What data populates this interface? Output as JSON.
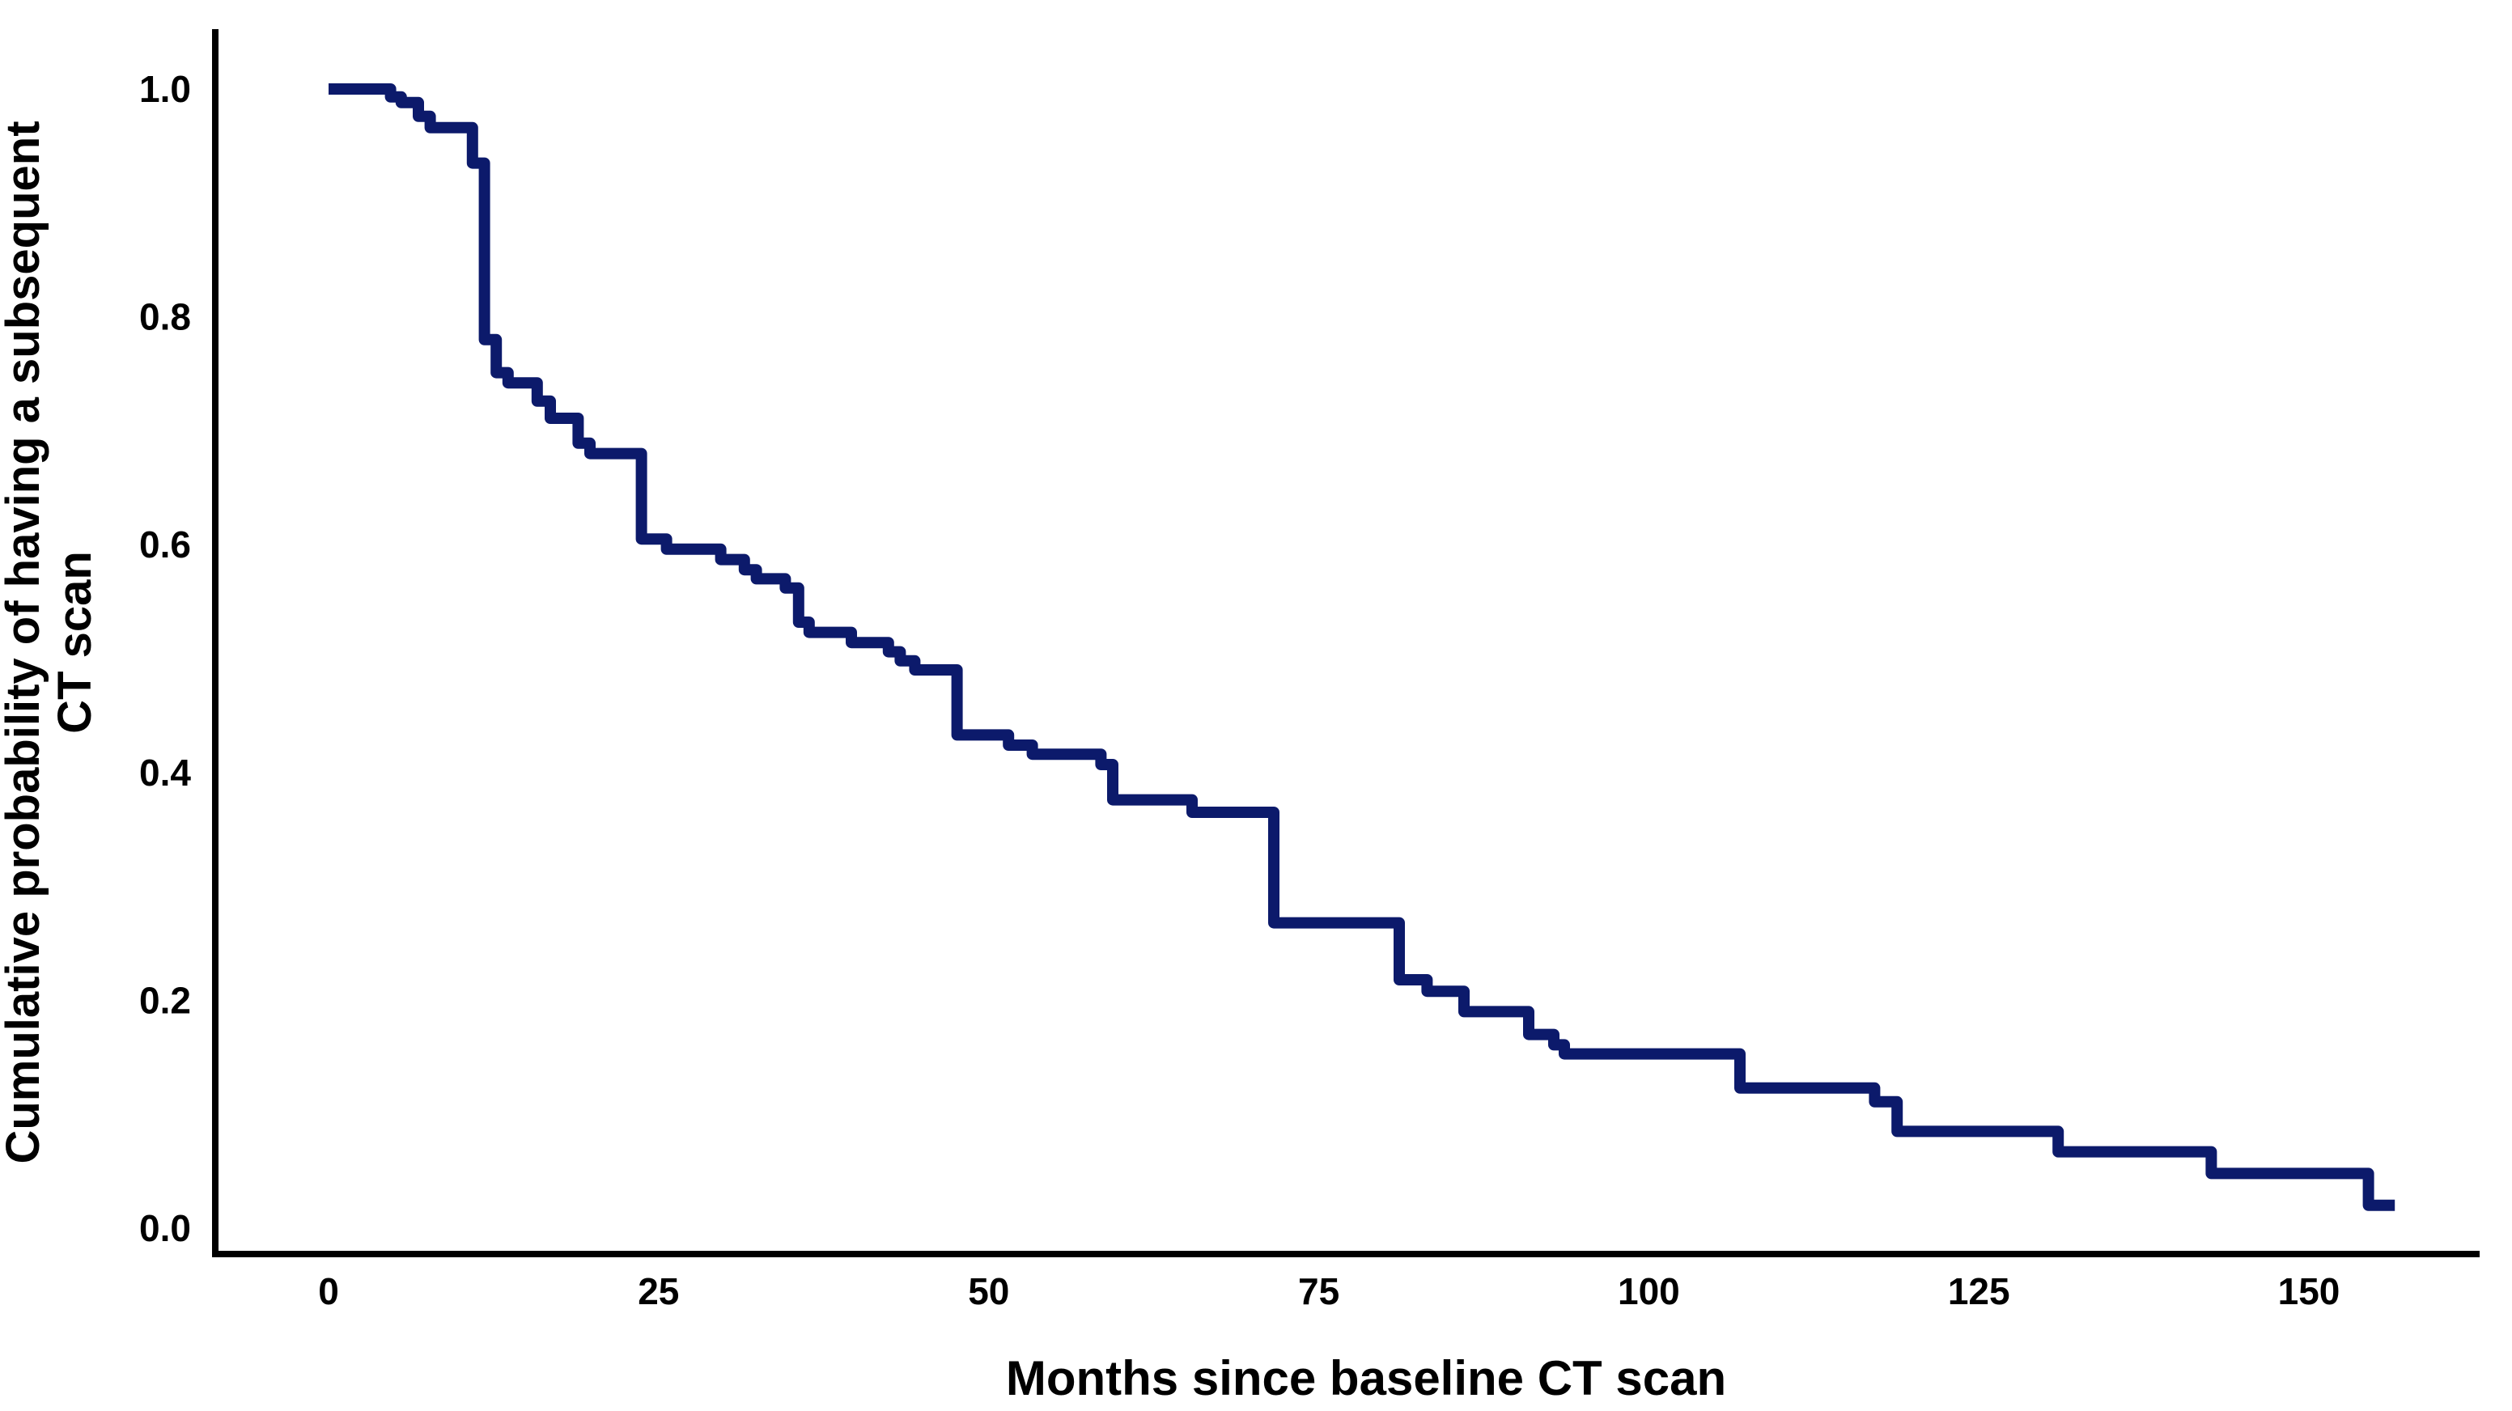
{
  "page": {
    "background_color": "#ffffff"
  },
  "chart_data": {
    "type": "line",
    "chart_style": "kaplan-meier-step-curve",
    "title": "",
    "xlabel": "Months since baseline CT scan",
    "ylabel": "Cumulative probability of having a subsequent CT scan",
    "ylabel_lines": [
      "Cumulative probability of having a subsequent",
      "CT scan"
    ],
    "xlim": [
      0,
      160
    ],
    "ylim": [
      0.0,
      1.0
    ],
    "x_ticks": {
      "values": [
        0,
        25,
        50,
        75,
        100,
        125,
        150
      ],
      "labels": [
        "0",
        "25",
        "50",
        "75",
        "100",
        "125",
        "150"
      ]
    },
    "y_ticks": {
      "values": [
        1.0,
        0.8,
        0.6,
        0.4,
        0.2,
        0.0
      ],
      "labels": [
        "1.0",
        "0.8",
        "0.6",
        "0.4",
        "0.2",
        "0.0"
      ]
    },
    "grid": false,
    "legend_position": "none",
    "line_color": "#0c1a6b",
    "axis_color": "#000000",
    "series": [
      {
        "name": "Cumulative probability of having a subsequent CT scan",
        "step_points_months_probability": [
          [
            0.0,
            1.0
          ],
          [
            4.7,
            0.993
          ],
          [
            5.5,
            0.988
          ],
          [
            6.8,
            0.976
          ],
          [
            7.7,
            0.966
          ],
          [
            10.9,
            0.935
          ],
          [
            11.8,
            0.78
          ],
          [
            12.7,
            0.751
          ],
          [
            13.6,
            0.742
          ],
          [
            15.8,
            0.726
          ],
          [
            16.8,
            0.711
          ],
          [
            18.9,
            0.689
          ],
          [
            19.8,
            0.68
          ],
          [
            23.7,
            0.605
          ],
          [
            25.6,
            0.596
          ],
          [
            29.7,
            0.587
          ],
          [
            31.5,
            0.578
          ],
          [
            32.4,
            0.57
          ],
          [
            34.6,
            0.562
          ],
          [
            35.6,
            0.532
          ],
          [
            36.4,
            0.523
          ],
          [
            39.6,
            0.514
          ],
          [
            42.4,
            0.506
          ],
          [
            43.3,
            0.498
          ],
          [
            44.4,
            0.49
          ],
          [
            47.6,
            0.433
          ],
          [
            51.5,
            0.424
          ],
          [
            53.3,
            0.416
          ],
          [
            58.5,
            0.407
          ],
          [
            59.4,
            0.376
          ],
          [
            65.4,
            0.365
          ],
          [
            71.6,
            0.268
          ],
          [
            81.1,
            0.218
          ],
          [
            83.2,
            0.208
          ],
          [
            86.0,
            0.19
          ],
          [
            90.9,
            0.17
          ],
          [
            92.8,
            0.161
          ],
          [
            93.6,
            0.153
          ],
          [
            106.9,
            0.123
          ],
          [
            117.1,
            0.111
          ],
          [
            118.8,
            0.085
          ],
          [
            131.0,
            0.067
          ],
          [
            142.6,
            0.048
          ],
          [
            154.5,
            0.02
          ]
        ],
        "curve_end_month": 156.5
      }
    ]
  }
}
